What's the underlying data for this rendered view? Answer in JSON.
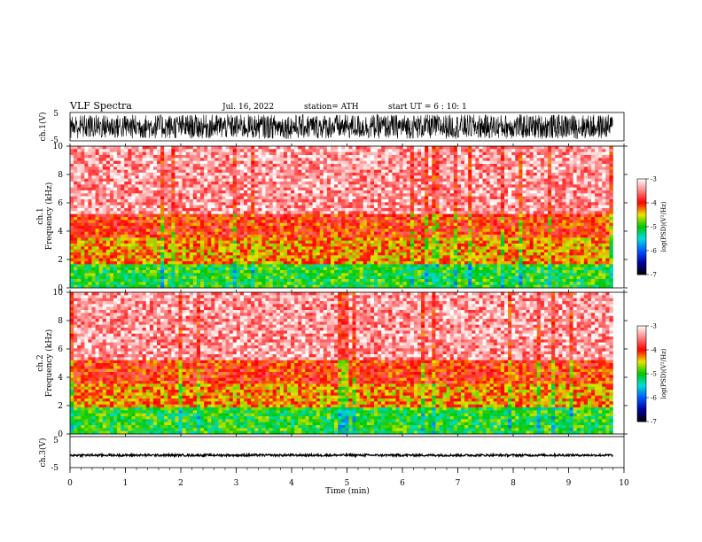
{
  "header": {
    "title": "VLF  Spectra",
    "date": "Jul.  16, 2022",
    "station": "station= ATH",
    "start": "start  UT  =    6   : 10: 1"
  },
  "chart_data": [
    {
      "type": "line",
      "ylabel": "ch.1(V)",
      "ylim": [
        -5,
        5
      ],
      "yticks": [
        "5",
        "-5"
      ],
      "x_range": [
        0,
        9.8
      ],
      "signal": "dense waveform spanning approx -4 to 4 V"
    },
    {
      "type": "heatmap",
      "ylabel": "ch.1\nFrequency  (kHz)",
      "ylim": [
        0,
        10
      ],
      "yticks": [
        "0",
        "2",
        "4",
        "6",
        "8",
        "10"
      ],
      "colorbar": {
        "label": "log(PSD)(V²/Hz)",
        "range": [
          -7,
          -3
        ],
        "ticks": [
          "-3",
          "-4",
          "-5",
          "-6",
          "-7"
        ]
      },
      "bands": [
        {
          "from": 0,
          "to": 1.6,
          "level": -5
        },
        {
          "from": 1.6,
          "to": 3.5,
          "level": -4.3
        },
        {
          "from": 3.5,
          "to": 5.3,
          "level": -4
        },
        {
          "from": 5.3,
          "to": 10,
          "level": -3.4
        }
      ]
    },
    {
      "type": "heatmap",
      "ylabel": "ch.2\nFrequency  (kHz)",
      "ylim": [
        0,
        10
      ],
      "yticks": [
        "0",
        "2",
        "4",
        "6",
        "8",
        "10"
      ],
      "colorbar": {
        "label": "log(PSD)(V²/Hz)",
        "range": [
          -7,
          -3
        ],
        "ticks": [
          "-3",
          "-4",
          "-5",
          "-6",
          "-7"
        ]
      },
      "bands": [
        {
          "from": 0,
          "to": 1.8,
          "level": -5
        },
        {
          "from": 1.8,
          "to": 3.5,
          "level": -4.3
        },
        {
          "from": 3.5,
          "to": 5.3,
          "level": -4
        },
        {
          "from": 5.3,
          "to": 10,
          "level": -3.4
        }
      ]
    },
    {
      "type": "line",
      "ylabel": "ch.3(V)",
      "ylim": [
        -5,
        5
      ],
      "yticks": [
        "5",
        "-5"
      ],
      "x_range": [
        0,
        9.8
      ],
      "signal": "flat band near -1 V"
    }
  ],
  "xaxis": {
    "label": "Time  (min)",
    "ticks": [
      "0",
      "1",
      "2",
      "3",
      "4",
      "5",
      "6",
      "7",
      "8",
      "9",
      "10"
    ],
    "range": [
      0,
      10
    ]
  }
}
